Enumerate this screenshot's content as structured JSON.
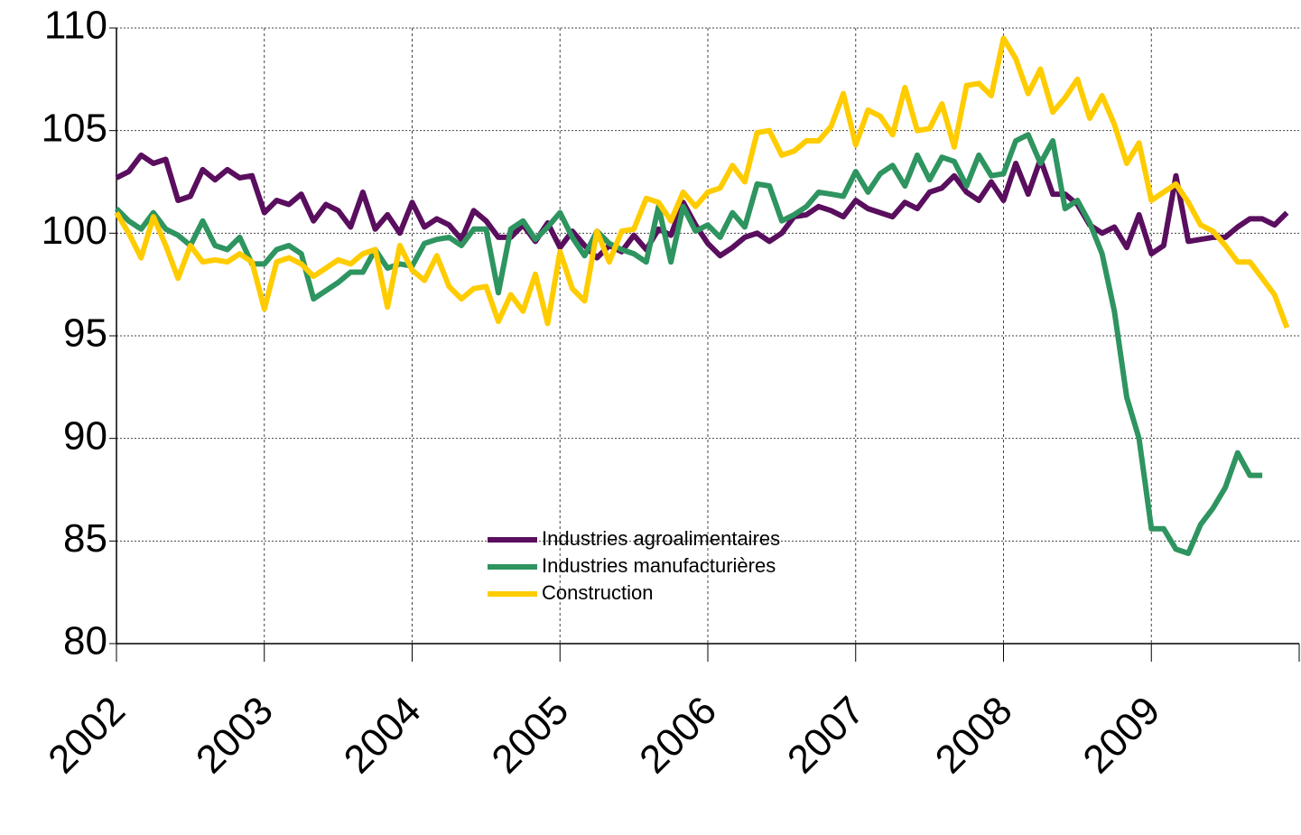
{
  "chart_data": {
    "type": "line",
    "x": [
      2002,
      2002.0833,
      2002.1667,
      2002.25,
      2002.3333,
      2002.4167,
      2002.5,
      2002.5833,
      2002.6667,
      2002.75,
      2002.8333,
      2002.9167,
      2003,
      2003.0833,
      2003.1667,
      2003.25,
      2003.3333,
      2003.4167,
      2003.5,
      2003.5833,
      2003.6667,
      2003.75,
      2003.8333,
      2003.9167,
      2004,
      2004.0833,
      2004.1667,
      2004.25,
      2004.3333,
      2004.4167,
      2004.5,
      2004.5833,
      2004.6667,
      2004.75,
      2004.8333,
      2004.9167,
      2005,
      2005.0833,
      2005.1667,
      2005.25,
      2005.3333,
      2005.4167,
      2005.5,
      2005.5833,
      2005.6667,
      2005.75,
      2005.8333,
      2005.9167,
      2006,
      2006.0833,
      2006.1667,
      2006.25,
      2006.3333,
      2006.4167,
      2006.5,
      2006.5833,
      2006.6667,
      2006.75,
      2006.8333,
      2006.9167,
      2007,
      2007.0833,
      2007.1667,
      2007.25,
      2007.3333,
      2007.4167,
      2007.5,
      2007.5833,
      2007.6667,
      2007.75,
      2007.8333,
      2007.9167,
      2008,
      2008.0833,
      2008.1667,
      2008.25,
      2008.3333,
      2008.4167,
      2008.5,
      2008.5833,
      2008.6667,
      2008.75,
      2008.8333,
      2008.9167,
      2009,
      2009.0833,
      2009.1667,
      2009.25,
      2009.3333,
      2009.4167,
      2009.5,
      2009.5833,
      2009.6667,
      2009.75,
      2009.8333,
      2009.9167
    ],
    "series": [
      {
        "name": "Industries agroalimentaires",
        "color": "#5a0e5e",
        "values": [
          102.7,
          103.0,
          103.8,
          103.4,
          103.6,
          101.6,
          101.8,
          103.1,
          102.6,
          103.1,
          102.7,
          102.8,
          101.0,
          101.6,
          101.4,
          101.9,
          100.6,
          101.4,
          101.1,
          100.3,
          102.0,
          100.2,
          100.9,
          100.0,
          101.5,
          100.3,
          100.7,
          100.4,
          99.7,
          101.1,
          100.6,
          99.8,
          99.8,
          100.4,
          99.6,
          100.5,
          99.3,
          100.1,
          99.4,
          98.8,
          99.4,
          99.1,
          99.9,
          99.2,
          100.2,
          99.9,
          101.5,
          100.4,
          99.5,
          98.9,
          99.3,
          99.8,
          100.0,
          99.6,
          100.0,
          100.8,
          100.9,
          101.3,
          101.1,
          100.8,
          101.6,
          101.2,
          101.0,
          100.8,
          101.5,
          101.2,
          102.0,
          102.2,
          102.8,
          102.0,
          101.6,
          102.5,
          101.6,
          103.4,
          101.9,
          103.6,
          101.9,
          101.9,
          101.4,
          100.4,
          100.0,
          100.3,
          99.3,
          100.9,
          99.0,
          99.4,
          102.8,
          99.6,
          99.7,
          99.8,
          99.8,
          100.3,
          100.7,
          100.7,
          100.4,
          101.0
        ]
      },
      {
        "name": "Industries manufacturières",
        "color": "#2e9460",
        "values": [
          101.2,
          100.6,
          100.2,
          101.0,
          100.2,
          99.9,
          99.4,
          100.6,
          99.4,
          99.2,
          99.8,
          98.5,
          98.5,
          99.2,
          99.4,
          99.0,
          96.8,
          97.2,
          97.6,
          98.1,
          98.1,
          99.2,
          98.3,
          98.5,
          98.4,
          99.5,
          99.7,
          99.8,
          99.4,
          100.2,
          100.2,
          97.1,
          100.2,
          100.6,
          99.7,
          100.3,
          101.0,
          99.8,
          98.9,
          100.1,
          99.5,
          99.2,
          99.0,
          98.6,
          101.3,
          98.6,
          101.3,
          100.1,
          100.4,
          99.8,
          101.0,
          100.3,
          102.4,
          102.3,
          100.6,
          100.9,
          101.3,
          102.0,
          101.9,
          101.8,
          103.0,
          102.0,
          102.9,
          103.3,
          102.3,
          103.8,
          102.6,
          103.7,
          103.5,
          102.3,
          103.8,
          102.8,
          102.9,
          104.5,
          104.8,
          103.4,
          104.5,
          101.2,
          101.6,
          100.5,
          99.0,
          96.2,
          92.0,
          90.0,
          85.6,
          85.6,
          84.6,
          84.4,
          85.8,
          86.6,
          87.6,
          89.3,
          88.2,
          88.2,
          null,
          null
        ]
      },
      {
        "name": "Construction",
        "color": "#ffcc00",
        "values": [
          101.0,
          100.0,
          98.8,
          100.8,
          99.4,
          97.8,
          99.4,
          98.6,
          98.7,
          98.6,
          99.0,
          98.6,
          96.3,
          98.6,
          98.8,
          98.5,
          97.9,
          98.3,
          98.7,
          98.5,
          99.0,
          99.2,
          96.4,
          99.4,
          98.2,
          97.7,
          98.9,
          97.4,
          96.8,
          97.3,
          97.4,
          95.7,
          97.0,
          96.2,
          98.0,
          95.6,
          99.1,
          97.3,
          96.7,
          100.1,
          98.6,
          100.1,
          100.2,
          101.7,
          101.5,
          100.6,
          102.0,
          101.3,
          102.0,
          102.2,
          103.3,
          102.5,
          104.9,
          105.0,
          103.8,
          104.0,
          104.5,
          104.5,
          105.2,
          106.8,
          104.3,
          106.0,
          105.7,
          104.8,
          107.1,
          105.0,
          105.1,
          106.3,
          104.2,
          107.2,
          107.3,
          106.7,
          109.5,
          108.5,
          106.8,
          108.0,
          105.9,
          106.6,
          107.5,
          105.6,
          106.7,
          105.3,
          103.4,
          104.4,
          101.6,
          102.0,
          102.4,
          101.5,
          100.4,
          100.1,
          99.4,
          98.6,
          98.6,
          97.8,
          97.0,
          95.4
        ]
      }
    ],
    "xlim": [
      2002,
      2010
    ],
    "xticks": [
      2002,
      2003,
      2004,
      2005,
      2006,
      2007,
      2008,
      2009
    ],
    "ylim": [
      80,
      110
    ],
    "yticks": [
      80,
      85,
      90,
      95,
      100,
      105,
      110
    ],
    "grid": true
  }
}
